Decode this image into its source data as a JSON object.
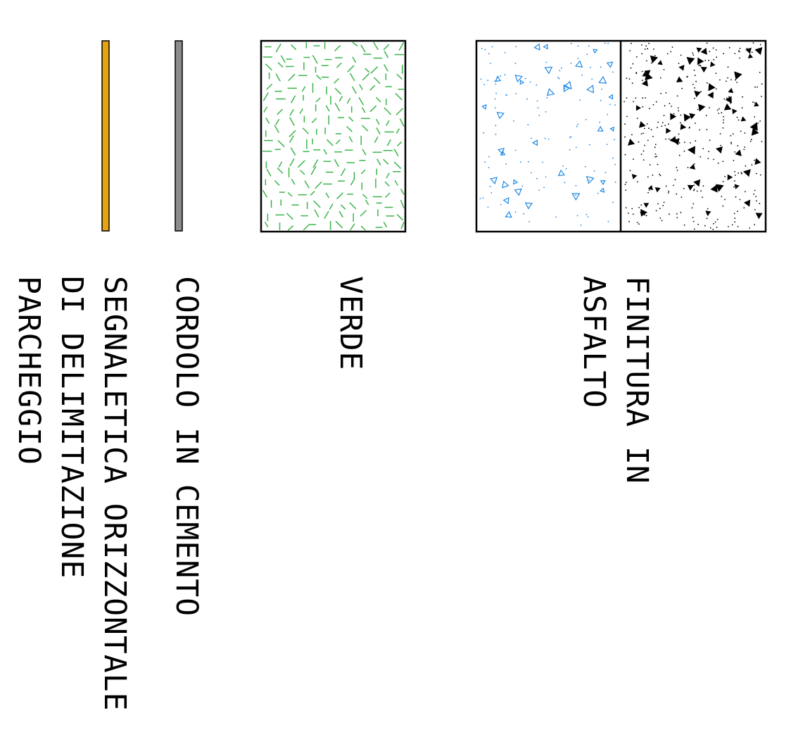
{
  "legend": {
    "items": [
      {
        "id": "asphalt",
        "lines": [
          "FINITURA IN",
          "ASFALTO"
        ],
        "pattern_colors": [
          "#1e88e5",
          "#000000"
        ]
      },
      {
        "id": "green",
        "lines": [
          "VERDE"
        ],
        "pattern_color": "#3bb54a"
      },
      {
        "id": "curb",
        "lines": [
          "CORDOLO IN CEMENTO"
        ],
        "fill_color": "#8c8c8c"
      },
      {
        "id": "marking",
        "lines": [
          "SEGNALETICA ORIZZONTALE",
          "DI DELIMITAZIONE",
          "PARCHEGGIO"
        ],
        "fill_color": "#e6a310"
      }
    ]
  }
}
